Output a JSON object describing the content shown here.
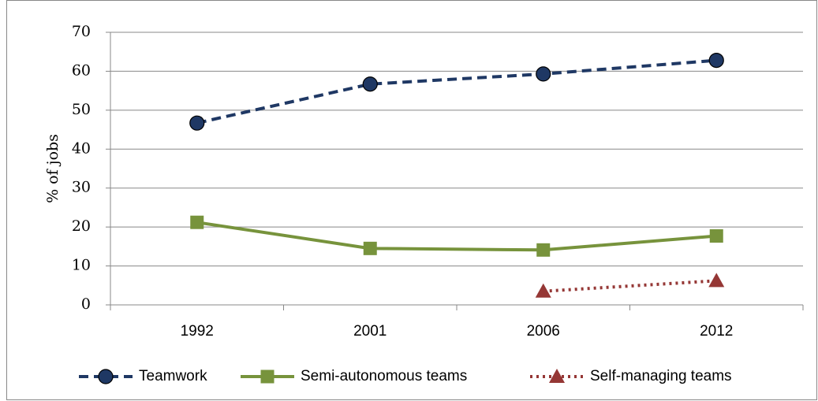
{
  "chart_data": {
    "type": "line",
    "y_label": "% of jobs",
    "categories": [
      "1992",
      "2001",
      "2006",
      "2012"
    ],
    "series": [
      {
        "name": "Teamwork",
        "color": "#1f3864",
        "marker": "circle",
        "line_style": "dashed",
        "values": [
          46.7,
          56.7,
          59.3,
          62.8
        ]
      },
      {
        "name": "Semi-autonomous teams",
        "color": "#77933c",
        "marker": "square",
        "line_style": "solid",
        "values": [
          21.2,
          14.5,
          14.1,
          17.7
        ]
      },
      {
        "name": "Self-managing teams",
        "color": "#953735",
        "marker": "triangle",
        "line_style": "dotted",
        "values": [
          null,
          null,
          3.5,
          6.2
        ]
      }
    ],
    "ylim": [
      0,
      70
    ],
    "yticks": [
      0,
      10,
      20,
      30,
      40,
      50,
      60,
      70
    ],
    "grid": true,
    "legend": "bottom"
  }
}
